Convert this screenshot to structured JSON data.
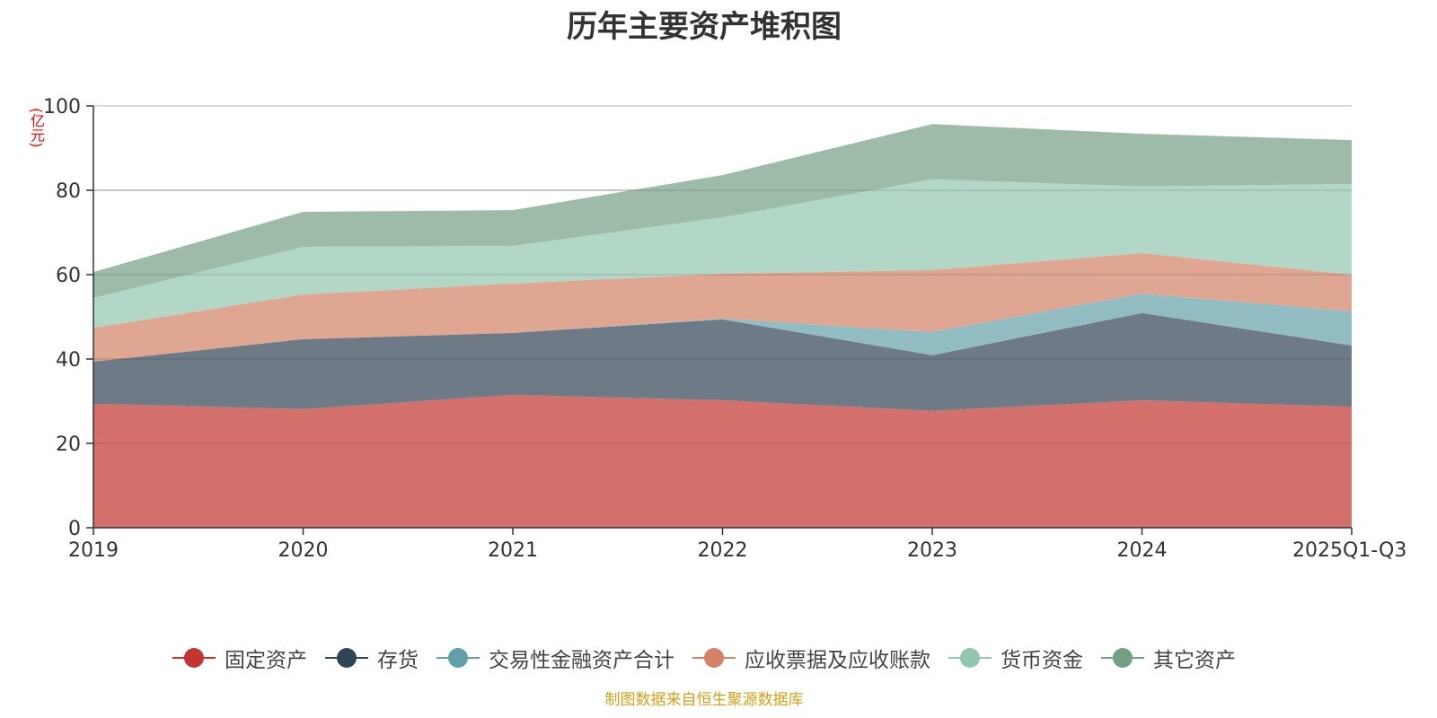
{
  "chart_data": {
    "type": "area",
    "stacked": true,
    "title": "历年主要资产堆积图",
    "ylabel": "(亿元)",
    "xlabel": "",
    "categories": [
      "2019",
      "2020",
      "2021",
      "2022",
      "2023",
      "2024",
      "2025Q1-Q3"
    ],
    "ylim": [
      0,
      100
    ],
    "yticks": [
      0,
      20,
      40,
      60,
      80,
      100
    ],
    "grid": true,
    "legend_position": "bottom",
    "series": [
      {
        "name": "固定资产",
        "color": "#c23531",
        "fill": "#d4706c",
        "values": [
          29.4,
          28.1,
          31.5,
          30.2,
          27.7,
          30.2,
          28.7
        ]
      },
      {
        "name": "存货",
        "color": "#2f4554",
        "fill": "#6e7b86",
        "values": [
          10.0,
          16.6,
          14.7,
          19.2,
          13.2,
          20.7,
          14.5
        ]
      },
      {
        "name": "交易性金融资产合计",
        "color": "#61a0a8",
        "fill": "#90bcc2",
        "values": [
          0,
          0,
          0,
          0.2,
          5.5,
          4.6,
          8.1
        ]
      },
      {
        "name": "应收票据及应收账款",
        "color": "#d48265",
        "fill": "#dfa692",
        "values": [
          8.0,
          10.6,
          11.7,
          10.6,
          14.7,
          9.6,
          8.7
        ]
      },
      {
        "name": "货币资金",
        "color": "#91c7ae",
        "fill": "#b2d7c6",
        "values": [
          7.1,
          11.3,
          8.9,
          13.4,
          21.5,
          15.8,
          21.5
        ]
      },
      {
        "name": "其它资产",
        "color": "#749f83",
        "fill": "#9dbba8",
        "values": [
          6.1,
          8.3,
          8.5,
          10.0,
          13.1,
          12.5,
          10.4
        ]
      }
    ]
  },
  "source_note": "制图数据来自恒生聚源数据库"
}
